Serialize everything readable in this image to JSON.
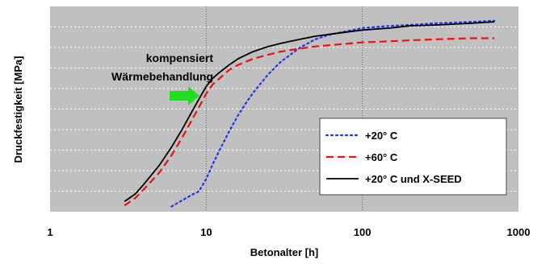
{
  "chart_data": {
    "type": "line",
    "xscale": "log",
    "xlim": [
      1,
      1000
    ],
    "ylim": [
      0,
      10
    ],
    "grid": {
      "horizontal": "dotted",
      "vertical": "dotted-at-decades"
    },
    "xlabel": "Betonalter [h]",
    "ylabel": "Druckfestigkeit [MPa]",
    "x_tick_labels": [
      {
        "value": 1,
        "label": "1"
      },
      {
        "value": 10,
        "label": "10"
      },
      {
        "value": 100,
        "label": "100"
      },
      {
        "value": 1000,
        "label": "1000"
      }
    ],
    "y_tick_values": [
      0,
      1,
      2,
      3,
      4,
      5,
      6,
      7,
      8,
      9,
      10
    ],
    "annotation": {
      "lines": [
        "kompensiert",
        "Wärmebehandlung"
      ],
      "arrow_color": "#22dd22",
      "arrow_points_to_x": 10
    },
    "legend": {
      "placement": "bottom-right"
    },
    "series": [
      {
        "name": "+20° C",
        "color": "#2233ee",
        "style": "dotted",
        "x": [
          6,
          7,
          8,
          9,
          10,
          11,
          12,
          14,
          16,
          18,
          20,
          25,
          30,
          40,
          50,
          60,
          80,
          100,
          150,
          200,
          300,
          400,
          500,
          700
        ],
        "y": [
          0.25,
          0.55,
          0.8,
          1.0,
          1.6,
          2.3,
          2.9,
          3.9,
          4.7,
          5.3,
          5.8,
          6.7,
          7.3,
          8.0,
          8.4,
          8.6,
          8.8,
          8.95,
          9.05,
          9.1,
          9.18,
          9.22,
          9.25,
          9.3
        ]
      },
      {
        "name": "+60° C",
        "color": "#ee1111",
        "style": "dashed",
        "x": [
          3,
          3.5,
          4,
          5,
          6,
          7,
          8,
          9,
          10,
          11,
          12,
          14,
          16,
          20,
          25,
          30,
          40,
          50,
          70,
          100,
          150,
          200,
          300,
          500,
          700
        ],
        "y": [
          0.3,
          0.65,
          1.1,
          1.9,
          2.75,
          3.6,
          4.4,
          5.1,
          5.75,
          6.2,
          6.45,
          6.9,
          7.15,
          7.45,
          7.65,
          7.8,
          7.95,
          8.05,
          8.15,
          8.25,
          8.3,
          8.35,
          8.4,
          8.45,
          8.45
        ]
      },
      {
        "name": "+20° C und X-SEED",
        "color": "#000000",
        "style": "solid",
        "x": [
          3,
          3.5,
          4,
          5,
          6,
          7,
          8,
          9,
          10,
          11,
          12,
          14,
          16,
          20,
          25,
          30,
          40,
          50,
          70,
          100,
          150,
          200,
          300,
          500,
          700
        ],
        "y": [
          0.5,
          0.85,
          1.35,
          2.25,
          3.15,
          4.0,
          4.8,
          5.5,
          6.1,
          6.5,
          6.75,
          7.15,
          7.45,
          7.8,
          8.05,
          8.2,
          8.4,
          8.55,
          8.7,
          8.85,
          8.95,
          9.05,
          9.1,
          9.18,
          9.25
        ]
      }
    ]
  }
}
